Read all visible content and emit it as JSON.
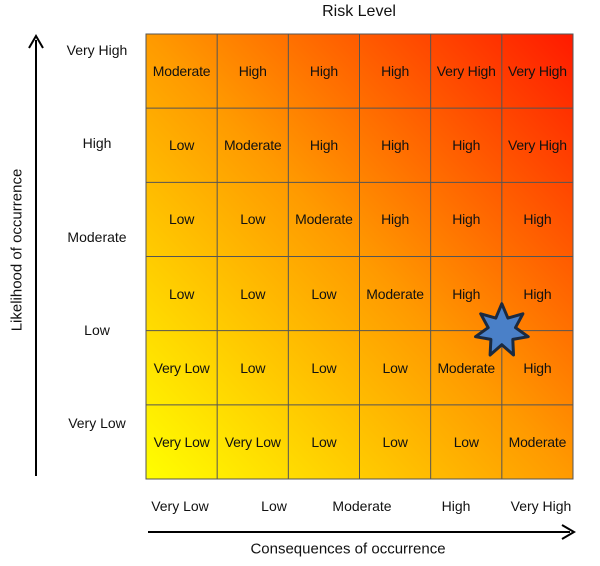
{
  "title": "Risk Level",
  "x_axis_title": "Consequences of occurrence",
  "y_axis_title": "Likelihood of occurrence",
  "x_labels": [
    "Very Low",
    "Low",
    "Moderate",
    "High",
    "Very High"
  ],
  "y_labels": [
    "Very High",
    "High",
    "Moderate",
    "Low",
    "Very Low"
  ],
  "grid": [
    [
      "Moderate",
      "High",
      "High",
      "High",
      "Very High",
      "Very High"
    ],
    [
      "Low",
      "Moderate",
      "High",
      "High",
      "High",
      "Very High"
    ],
    [
      "Low",
      "Low",
      "Moderate",
      "High",
      "High",
      "High"
    ],
    [
      "Low",
      "Low",
      "Low",
      "Moderate",
      "High",
      "High"
    ],
    [
      "Very Low",
      "Low",
      "Low",
      "Low",
      "Moderate",
      "High"
    ],
    [
      "Very Low",
      "Very Low",
      "Low",
      "Low",
      "Low",
      "Moderate"
    ]
  ],
  "colors": {
    "yellow": "#ffff00",
    "orange": "#ff9a00",
    "red": "#ff1a00",
    "grid_line": "#555555",
    "star_fill": "#4a80c8",
    "star_stroke": "#1b2a40"
  },
  "marker": {
    "shape": "star-icon",
    "row_from_top": 4,
    "col": 5
  }
}
